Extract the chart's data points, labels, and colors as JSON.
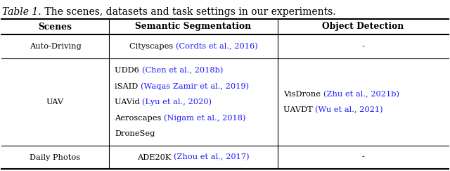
{
  "bg_color": "#ffffff",
  "text_color": "#000000",
  "cite_color": "#1a1aff",
  "figsize": [
    6.4,
    2.43
  ],
  "dpi": 100,
  "title_italic": "Table 1.",
  "title_normal": " The scenes, datasets and task settings in our experiments.",
  "header": [
    "Scenes",
    "Semantic Segmentation",
    "Object Detection"
  ],
  "rows": [
    {
      "scene": "Auto-Driving",
      "seg": [
        [
          "Cityscapes ",
          "(Cordts et al., 2016)"
        ]
      ],
      "det": [
        "-"
      ]
    },
    {
      "scene": "UAV",
      "seg": [
        [
          "UDD6 ",
          "(Chen et al., 2018b)"
        ],
        [
          "iSAID ",
          "(Waqas Zamir et al., 2019)"
        ],
        [
          "UAVid ",
          "(Lyu et al., 2020)"
        ],
        [
          "Aeroscapes ",
          "(Nigam et al., 2018)"
        ],
        [
          "DroneSeg",
          ""
        ]
      ],
      "det": [
        [
          "VisDrone ",
          "(Zhu et al., 2021b)"
        ],
        [
          "UAVDT ",
          "(Wu et al., 2021)"
        ]
      ]
    },
    {
      "scene": "Daily Photos",
      "seg": [
        [
          "ADE20K ",
          "(Zhou et al., 2017)"
        ]
      ],
      "det": [
        "-"
      ]
    }
  ]
}
